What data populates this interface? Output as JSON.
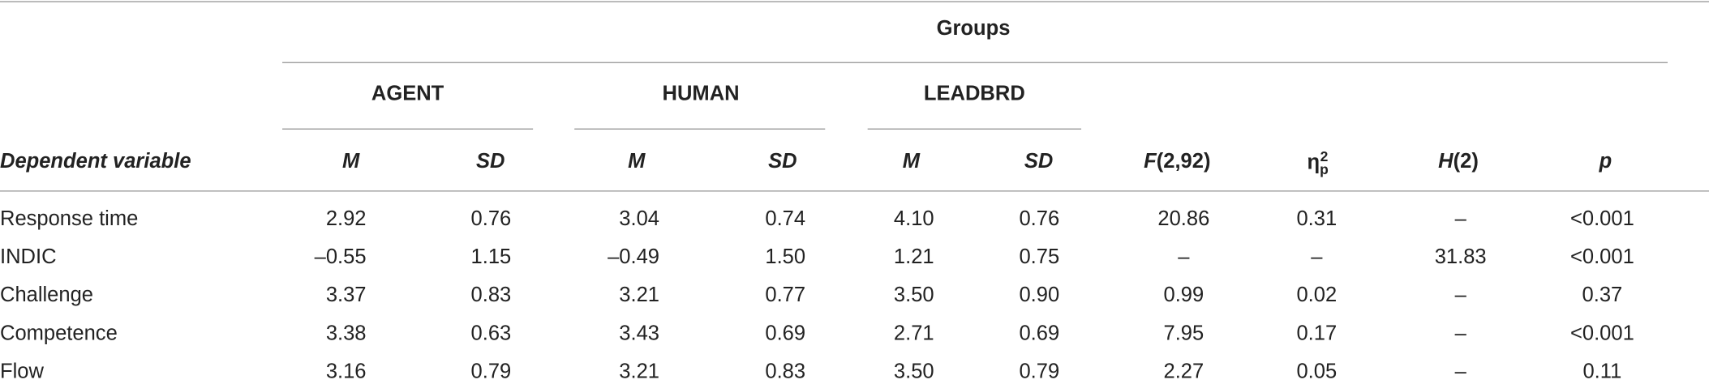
{
  "table": {
    "groups_title": "Groups",
    "groups": [
      "AGENT",
      "HUMAN",
      "LEADBRD"
    ],
    "columns": [
      {
        "italic": "Dependent variable"
      },
      {
        "italic": "M"
      },
      {
        "italic": "SD"
      },
      {
        "italic": "M"
      },
      {
        "italic": "SD"
      },
      {
        "italic": "M"
      },
      {
        "italic": "SD"
      },
      {
        "italic": "F",
        "rest": "(2,92)"
      },
      {
        "base": "η",
        "sup": "2",
        "sub": "p"
      },
      {
        "italic": "H",
        "rest": "(2)"
      },
      {
        "italic": "p"
      }
    ],
    "rows": [
      [
        "Response time",
        "2.92",
        "0.76",
        "3.04",
        "0.74",
        "4.10",
        "0.76",
        "20.86",
        "0.31",
        "–",
        "<0.001"
      ],
      [
        "INDIC",
        "–0.55",
        "1.15",
        "–0.49",
        "1.50",
        "1.21",
        "0.75",
        "–",
        "–",
        "31.83",
        "<0.001"
      ],
      [
        "Challenge",
        "3.37",
        "0.83",
        "3.21",
        "0.77",
        "3.50",
        "0.90",
        "0.99",
        "0.02",
        "–",
        "0.37"
      ],
      [
        "Competence",
        "3.38",
        "0.63",
        "3.43",
        "0.69",
        "2.71",
        "0.69",
        "7.95",
        "0.17",
        "–",
        "<0.001"
      ],
      [
        "Flow",
        "3.16",
        "0.79",
        "3.21",
        "0.83",
        "3.50",
        "0.79",
        "2.27",
        "0.05",
        "–",
        "0.11"
      ]
    ]
  }
}
